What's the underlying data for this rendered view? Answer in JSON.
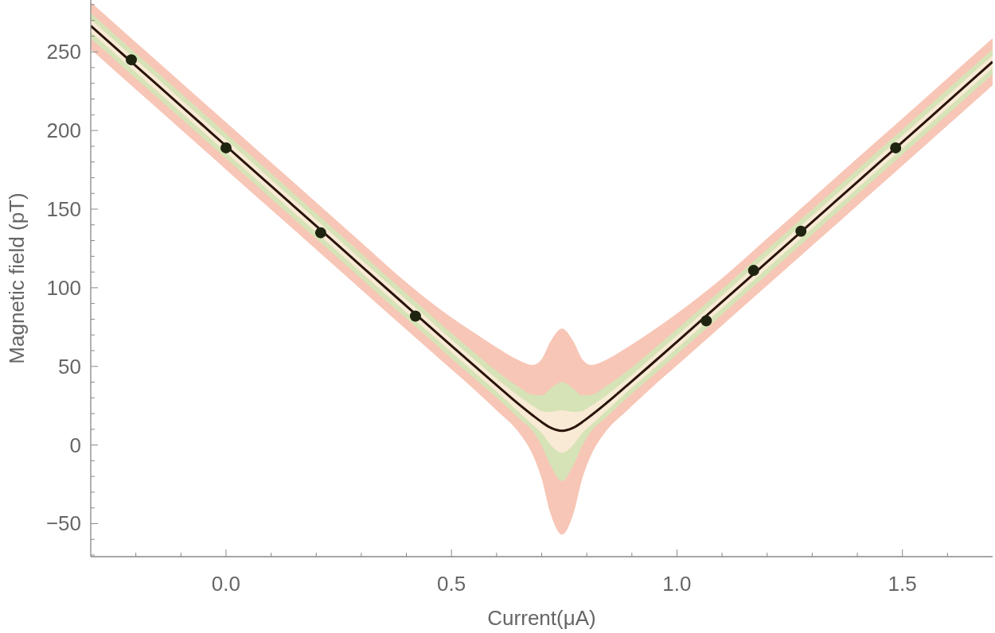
{
  "chart_data": {
    "type": "line",
    "xlabel": "Current(μA)",
    "ylabel": "Magnetic field (pT)",
    "xlim": [
      -0.3,
      1.7
    ],
    "xticks": [
      {
        "value": -0.2,
        "label": null
      },
      {
        "value": -0.1,
        "label": null
      },
      {
        "value": 0,
        "label": "0.0"
      },
      {
        "value": 0.1,
        "label": null
      },
      {
        "value": 0.2,
        "label": null
      },
      {
        "value": 0.3,
        "label": null
      },
      {
        "value": 0.4,
        "label": null
      },
      0.5,
      {
        "value": 0.6,
        "label": null
      },
      {
        "value": 0.7,
        "label": null
      },
      {
        "value": 0.8,
        "label": null
      },
      {
        "value": 0.9,
        "label": null
      },
      {
        "value": 1,
        "label": "1.0"
      },
      {
        "value": 1.1,
        "label": null
      },
      {
        "value": 1.2,
        "label": null
      },
      {
        "value": 1.3,
        "label": null
      },
      {
        "value": 1.4,
        "label": null
      },
      1.5,
      {
        "value": 1.6,
        "label": null
      }
    ],
    "ylim": [
      -71,
      283
    ],
    "yticks": [
      {
        "value": -70,
        "label": null
      },
      {
        "value": -60,
        "label": null
      },
      {
        "value": -50,
        "label": "−50"
      },
      {
        "value": -40,
        "label": null
      },
      {
        "value": -30,
        "label": null
      },
      {
        "value": -20,
        "label": null
      },
      {
        "value": -10,
        "label": null
      },
      0,
      {
        "value": 10,
        "label": null
      },
      {
        "value": 20,
        "label": null
      },
      {
        "value": 30,
        "label": null
      },
      {
        "value": 40,
        "label": null
      },
      50,
      {
        "value": 60,
        "label": null
      },
      {
        "value": 70,
        "label": null
      },
      {
        "value": 80,
        "label": null
      },
      {
        "value": 90,
        "label": null
      },
      100,
      {
        "value": 110,
        "label": null
      },
      {
        "value": 120,
        "label": null
      },
      {
        "value": 130,
        "label": null
      },
      {
        "value": 140,
        "label": null
      },
      150,
      {
        "value": 160,
        "label": null
      },
      {
        "value": 170,
        "label": null
      },
      {
        "value": 180,
        "label": null
      },
      {
        "value": 190,
        "label": null
      },
      200,
      {
        "value": 210,
        "label": null
      },
      {
        "value": 220,
        "label": null
      },
      {
        "value": 230,
        "label": null
      },
      {
        "value": 240,
        "label": null
      },
      250,
      {
        "value": 260,
        "label": null
      },
      {
        "value": 270,
        "label": null
      },
      {
        "value": 280,
        "label": null
      }
    ],
    "grid": false,
    "series": [
      {
        "type": "line",
        "color": "#f7c6b6",
        "x": [
          -0.3,
          -0.2,
          -0.1,
          0,
          0.1,
          0.2,
          0.3,
          0.4,
          0.5,
          0.55,
          0.6,
          0.65,
          0.68,
          0.7,
          0.72,
          0.745,
          0.77,
          0.79,
          0.81,
          0.84,
          0.89,
          0.94,
          1.0,
          1.1,
          1.2,
          1.3,
          1.4,
          1.5,
          1.6,
          1.7
        ],
        "values": [
          null,
          null,
          null,
          null,
          null,
          null,
          null,
          null,
          null,
          null,
          null,
          null,
          null,
          null,
          null,
          null,
          null,
          null,
          null,
          null,
          null,
          null,
          null,
          null,
          null,
          null,
          null,
          null,
          null,
          null
        ],
        "upper": [
          281.6,
          256.1,
          230.7,
          205.2,
          179.7,
          154.3,
          128.8,
          103.4,
          81.1,
          71.5,
          62.1,
          53.8,
          50.9,
          54.6,
          66,
          74,
          66,
          54.6,
          50.9,
          53.8,
          62.1,
          71.5,
          83.6,
          106,
          131.4,
          156.8,
          182.3,
          207.7,
          233.2,
          258.7
        ],
        "lower": [
          251.6,
          226.1,
          200.7,
          175.2,
          149.7,
          124.3,
          98.8,
          73.4,
          48.1,
          35.5,
          22.1,
          7.8,
          -6.1,
          -21.4,
          -44,
          -57,
          -44,
          -21.4,
          -6.1,
          7.8,
          22.1,
          35.5,
          50.6,
          76,
          101.4,
          126.8,
          152.3,
          177.7,
          203.2,
          228.7
        ]
      },
      {
        "type": "line",
        "color": "#d6e3b6",
        "x": [
          -0.3,
          -0.2,
          -0.1,
          0,
          0.1,
          0.2,
          0.3,
          0.4,
          0.5,
          0.55,
          0.6,
          0.65,
          0.68,
          0.7,
          0.72,
          0.745,
          0.77,
          0.79,
          0.81,
          0.84,
          0.89,
          0.94,
          1.0,
          1.1,
          1.2,
          1.3,
          1.4,
          1.5,
          1.6,
          1.7
        ],
        "values": [
          null,
          null,
          null,
          null,
          null,
          null,
          null,
          null,
          null,
          null,
          null,
          null,
          null,
          null,
          null,
          null,
          null,
          null,
          null,
          null,
          null,
          null,
          null,
          null,
          null,
          null,
          null,
          null,
          null,
          null
        ],
        "upper": [
          274.6,
          249.1,
          223.7,
          198.2,
          172.7,
          147.3,
          121.8,
          96.4,
          71.1,
          59,
          47.1,
          36.8,
          31.9,
          31.6,
          36,
          40,
          36,
          31.6,
          31.9,
          36.8,
          47.1,
          59,
          73.6,
          99,
          124.4,
          149.8,
          175.3,
          200.7,
          226.2,
          251.7
        ],
        "lower": [
          258.6,
          233.1,
          207.7,
          182.2,
          156.7,
          131.3,
          105.8,
          80.4,
          55.1,
          42.5,
          30.1,
          16.8,
          8.9,
          -0.4,
          -13,
          -23,
          -13,
          -0.4,
          8.9,
          16.8,
          30.1,
          42.5,
          57.6,
          83,
          108.4,
          133.8,
          159.3,
          184.7,
          210.2,
          235.7
        ]
      },
      {
        "type": "line",
        "color": "#f9ead6",
        "x": [
          -0.3,
          -0.2,
          -0.1,
          0,
          0.1,
          0.2,
          0.3,
          0.4,
          0.5,
          0.55,
          0.6,
          0.65,
          0.68,
          0.7,
          0.72,
          0.745,
          0.77,
          0.79,
          0.81,
          0.84,
          0.89,
          0.94,
          1.0,
          1.1,
          1.2,
          1.3,
          1.4,
          1.5,
          1.6,
          1.7
        ],
        "values": [
          null,
          null,
          null,
          null,
          null,
          null,
          null,
          null,
          null,
          null,
          null,
          null,
          null,
          null,
          null,
          null,
          null,
          null,
          null,
          null,
          null,
          null,
          null,
          null,
          null,
          null,
          null,
          null,
          null,
          null
        ],
        "upper": [
          270.6,
          245.1,
          219.7,
          194.2,
          168.7,
          143.3,
          117.8,
          92.4,
          67.1,
          54.5,
          42.1,
          30.8,
          24.9,
          21.6,
          21,
          22,
          21,
          21.6,
          24.9,
          30.8,
          42.1,
          54.5,
          69.6,
          95,
          120.4,
          145.8,
          171.3,
          196.7,
          222.2,
          247.7
        ],
        "lower": [
          262.6,
          237.1,
          211.7,
          186.2,
          160.7,
          135.3,
          109.8,
          84.4,
          59.1,
          46.5,
          34.1,
          20.8,
          12.9,
          7.6,
          0,
          -5,
          0,
          7.6,
          12.9,
          20.8,
          34.1,
          46.5,
          61.6,
          87,
          112.4,
          137.8,
          163.3,
          188.7,
          214.2,
          239.7
        ]
      },
      {
        "type": "line",
        "color": "#2a1409",
        "marker": "none",
        "line_style": "solid",
        "x": [
          -0.3,
          -0.2,
          -0.1,
          0,
          0.1,
          0.2,
          0.3,
          0.4,
          0.5,
          0.55,
          0.6,
          0.65,
          0.68,
          0.7,
          0.72,
          0.745,
          0.77,
          0.79,
          0.81,
          0.84,
          0.89,
          0.94,
          1.0,
          1.1,
          1.2,
          1.3,
          1.4,
          1.5,
          1.6,
          1.7
        ],
        "values": [
          266.6,
          241.1,
          215.7,
          190.2,
          164.7,
          139.3,
          113.8,
          88.4,
          63.1,
          50.5,
          38.1,
          25.8,
          18.9,
          14.6,
          11.0,
          9,
          11.0,
          14.6,
          18.9,
          25.8,
          38.1,
          50.5,
          65.6,
          91.0,
          116.4,
          141.8,
          167.3,
          192.7,
          218.2,
          243.7
        ]
      },
      {
        "type": "scatter",
        "color": "#1f2410",
        "marker": "circle",
        "x": [
          -0.21,
          0,
          0.21,
          0.42,
          1.065,
          1.17,
          1.275,
          1.485
        ],
        "values": [
          245,
          189,
          135,
          82,
          79,
          111,
          136,
          189
        ]
      }
    ]
  }
}
